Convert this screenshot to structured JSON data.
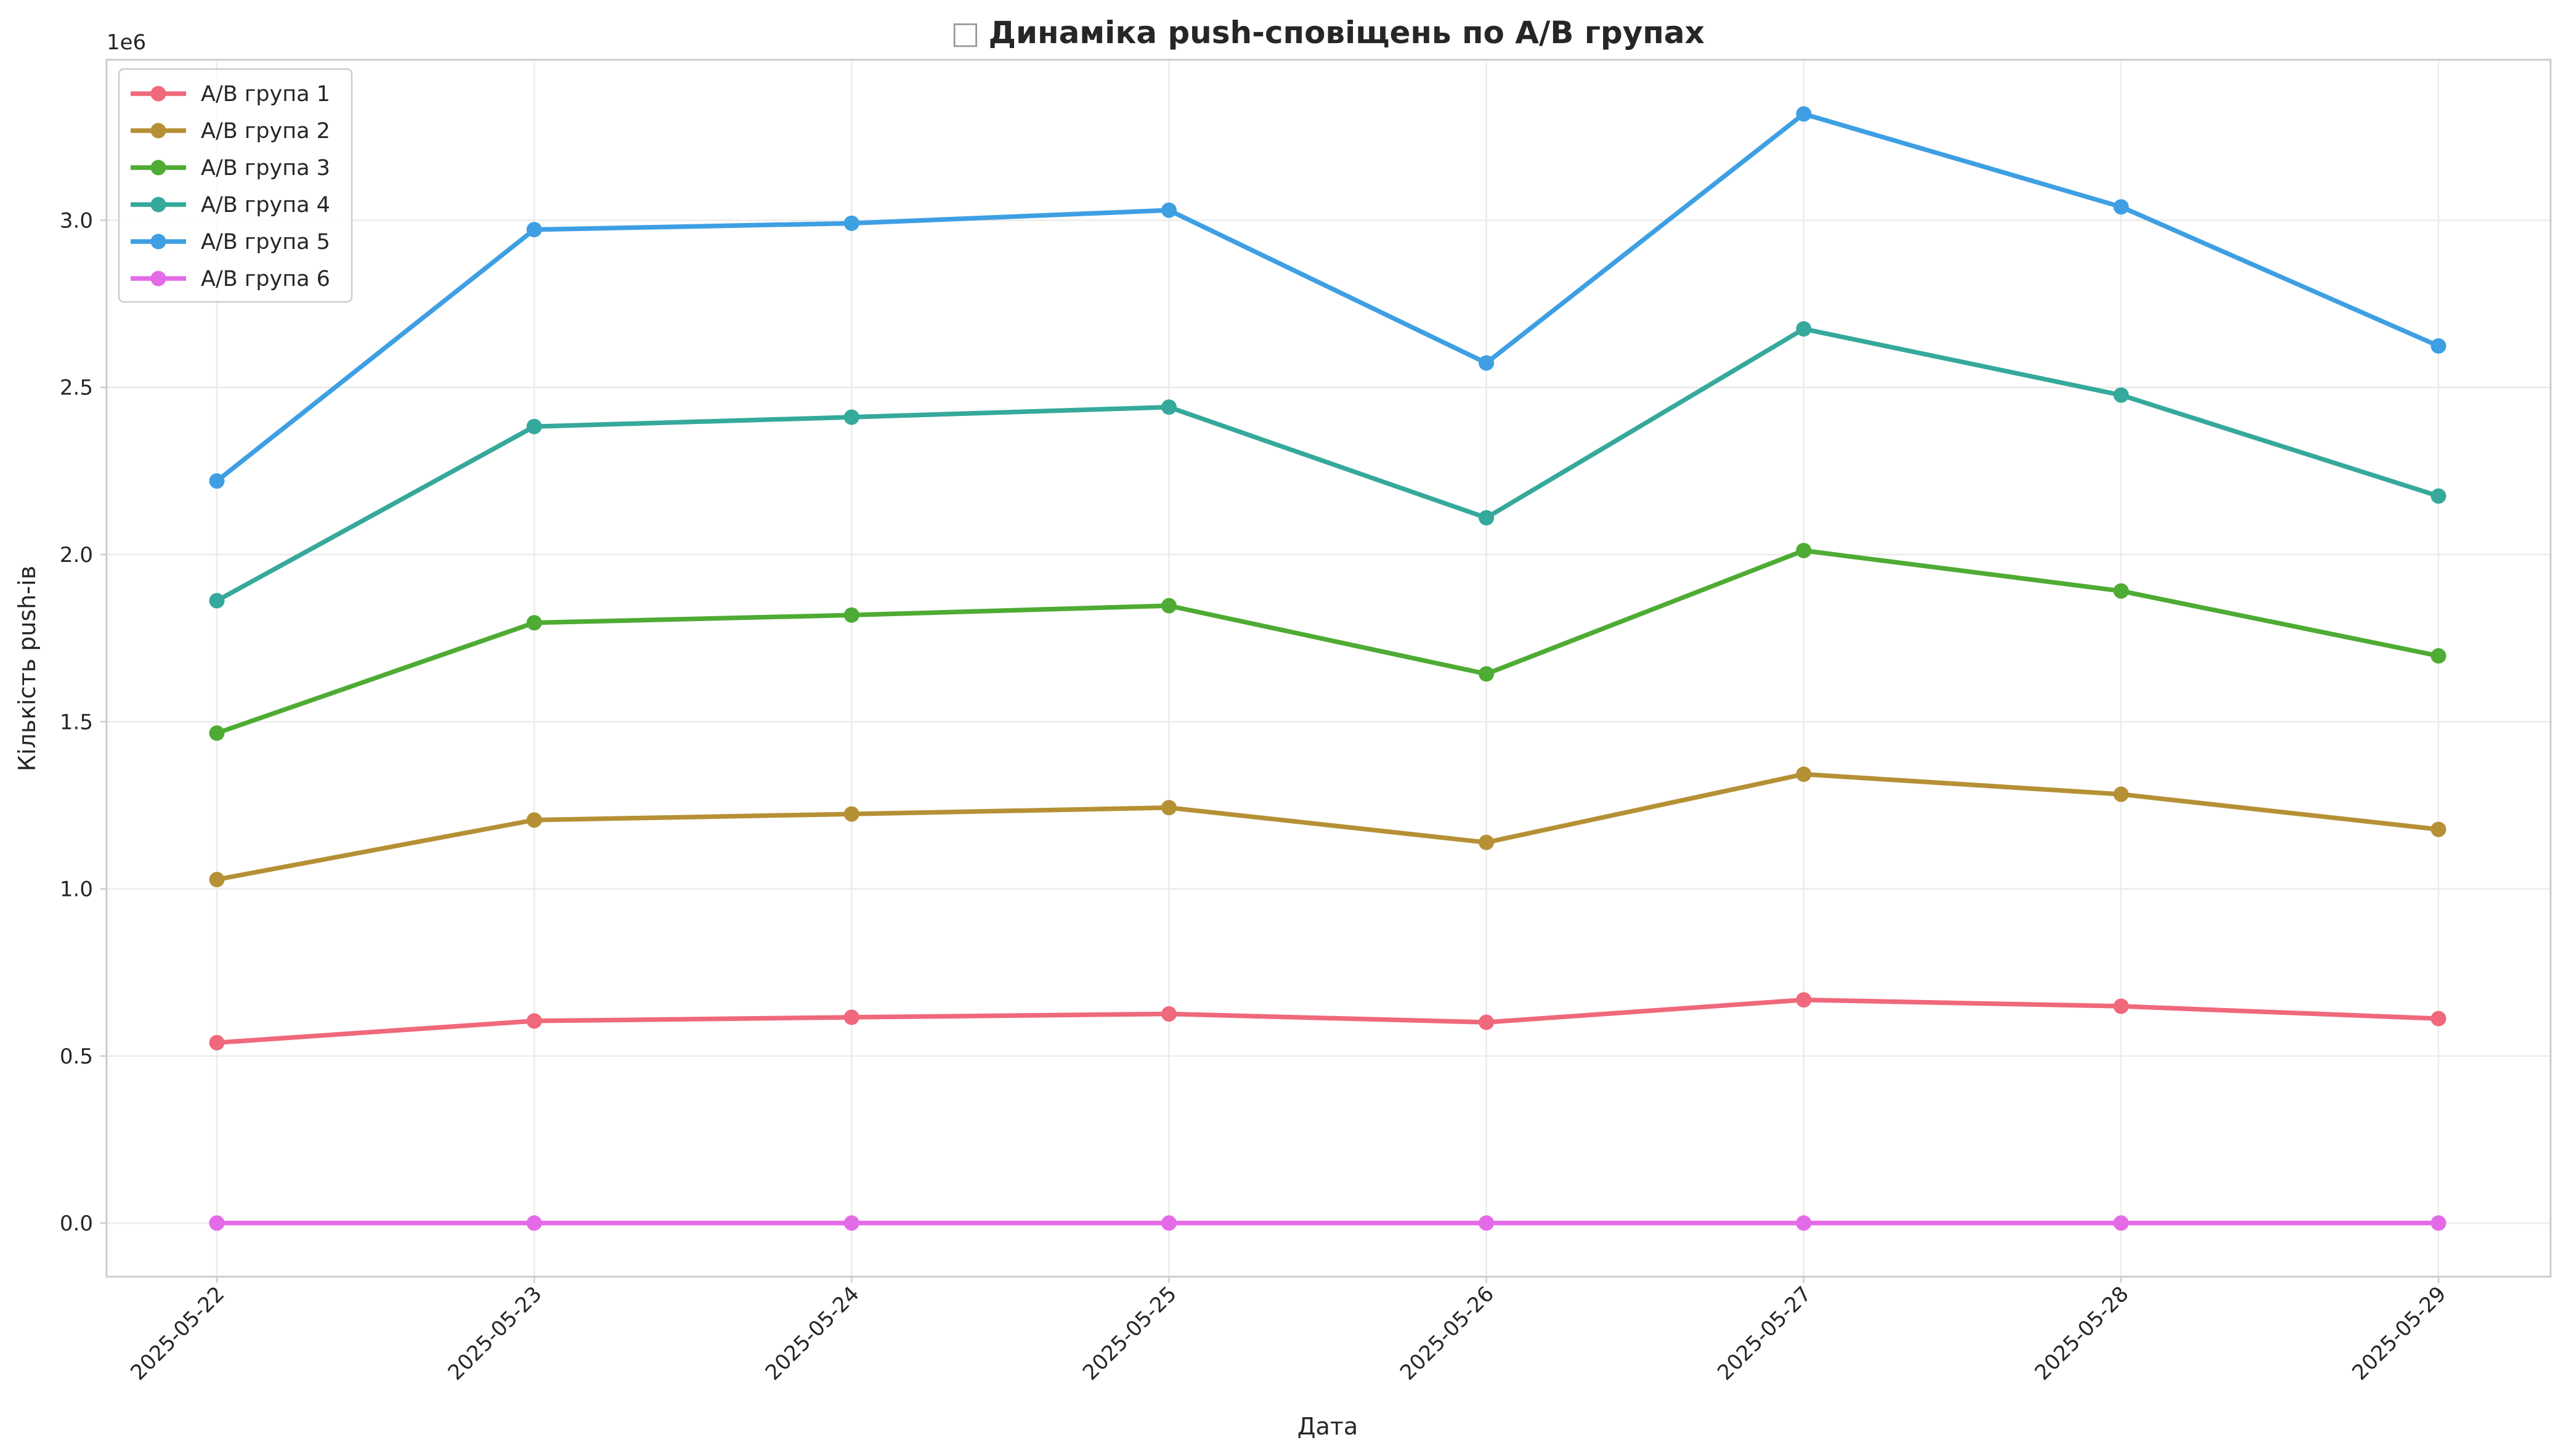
{
  "chart_data": {
    "type": "line",
    "title": "Динаміка push-сповіщень по A/B групах",
    "title_icon": "□",
    "xlabel": "Дата",
    "ylabel": "Кількість push-ів",
    "y_offset_label": "1e6",
    "categories": [
      "2025-05-22",
      "2025-05-23",
      "2025-05-24",
      "2025-05-25",
      "2025-05-26",
      "2025-05-27",
      "2025-05-28",
      "2025-05-29"
    ],
    "ylim": [
      -0.16,
      3.48
    ],
    "y_scale": 1000000,
    "yticks": [
      0.0,
      0.5,
      1.0,
      1.5,
      2.0,
      2.5,
      3.0
    ],
    "ytick_labels": [
      "0.0",
      "0.5",
      "1.0",
      "1.5",
      "2.0",
      "2.5",
      "3.0"
    ],
    "grid": true,
    "legend_position": "top-left",
    "series": [
      {
        "name": "A/B група 1",
        "color": "#f0687b",
        "values": [
          540000,
          605000,
          616000,
          626000,
          601000,
          668000,
          649000,
          612000
        ]
      },
      {
        "name": "A/B група 2",
        "color": "#b69035",
        "values": [
          1028000,
          1206000,
          1224000,
          1243000,
          1139000,
          1343000,
          1283000,
          1178000
        ]
      },
      {
        "name": "A/B група 3",
        "color": "#4eab33",
        "values": [
          1466000,
          1796000,
          1819000,
          1847000,
          1643000,
          2012000,
          1891000,
          1697000
        ]
      },
      {
        "name": "A/B група 4",
        "color": "#35a99b",
        "values": [
          1862000,
          2383000,
          2411000,
          2441000,
          2110000,
          2675000,
          2477000,
          2175000
        ]
      },
      {
        "name": "A/B група 5",
        "color": "#3e9fe3",
        "values": [
          2220000,
          2972000,
          2991000,
          3030000,
          2573000,
          3318000,
          3040000,
          2624000
        ]
      },
      {
        "name": "A/B група 6",
        "color": "#e46be7",
        "values": [
          500,
          500,
          500,
          500,
          500,
          500,
          500,
          500
        ]
      }
    ]
  }
}
